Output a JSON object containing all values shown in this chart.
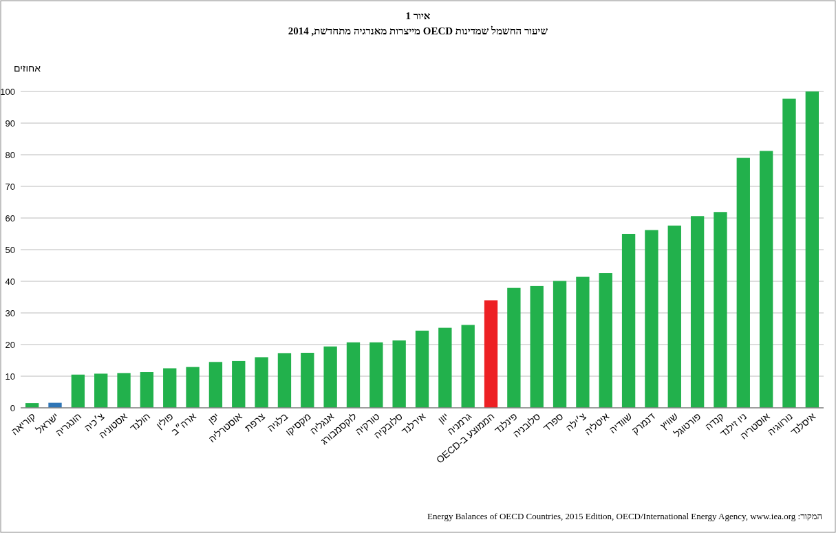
{
  "chart_data": {
    "type": "bar",
    "title": "איור 1",
    "subtitle": "שיעור החשמל שמדינות OECD מייצרות מאנרגיה מתחדשת, 2014",
    "ylabel": "אחוזים",
    "categories": [
      "קוריאה",
      "ישראל",
      "הונגריה",
      "צ׳כיה",
      "אסטוניה",
      "הולנד",
      "פולין",
      "ארה״ב",
      "יפן",
      "אוסטרליה",
      "צרפת",
      "בלגיה",
      "מקסיקו",
      "אנגליה",
      "לוקסמבורג",
      "טורקיה",
      "סלובקיה",
      "אירלנד",
      "יוון",
      "גרמניה",
      "הממוצע ב-OECD",
      "פינלנד",
      "סלובניה",
      "ספרד",
      "צ׳ילה",
      "איטליה",
      "שוודיה",
      "דנמרק",
      "שוויץ",
      "פורטוגל",
      "קנדה",
      "ניו זילנד",
      "אוסטריה",
      "נורווגיה",
      "איסלנד"
    ],
    "values": [
      1.5,
      1.6,
      10.5,
      10.8,
      11,
      11.3,
      12.5,
      12.9,
      14.5,
      14.8,
      16,
      17.3,
      17.4,
      19.4,
      20.7,
      20.7,
      21.3,
      24.4,
      25.3,
      26.2,
      34,
      37.9,
      38.5,
      40.1,
      41.4,
      42.6,
      55,
      56.2,
      57.6,
      60.6,
      61.9,
      79,
      81.2,
      97.7,
      100
    ],
    "colors": [
      "#22b14c",
      "#2e75b6",
      "#22b14c",
      "#22b14c",
      "#22b14c",
      "#22b14c",
      "#22b14c",
      "#22b14c",
      "#22b14c",
      "#22b14c",
      "#22b14c",
      "#22b14c",
      "#22b14c",
      "#22b14c",
      "#22b14c",
      "#22b14c",
      "#22b14c",
      "#22b14c",
      "#22b14c",
      "#22b14c",
      "#ed2024",
      "#22b14c",
      "#22b14c",
      "#22b14c",
      "#22b14c",
      "#22b14c",
      "#22b14c",
      "#22b14c",
      "#22b14c",
      "#22b14c",
      "#22b14c",
      "#22b14c",
      "#22b14c",
      "#22b14c",
      "#22b14c"
    ],
    "ylim": [
      0,
      100
    ],
    "yticks": [
      0,
      10,
      20,
      30,
      40,
      50,
      60,
      70,
      80,
      90,
      100
    ],
    "grid": "y",
    "annotations": [
      "המקור: Energy Balances of OECD Countries, 2015 Edition, OECD/International Energy Agency, www.iea.org"
    ]
  }
}
